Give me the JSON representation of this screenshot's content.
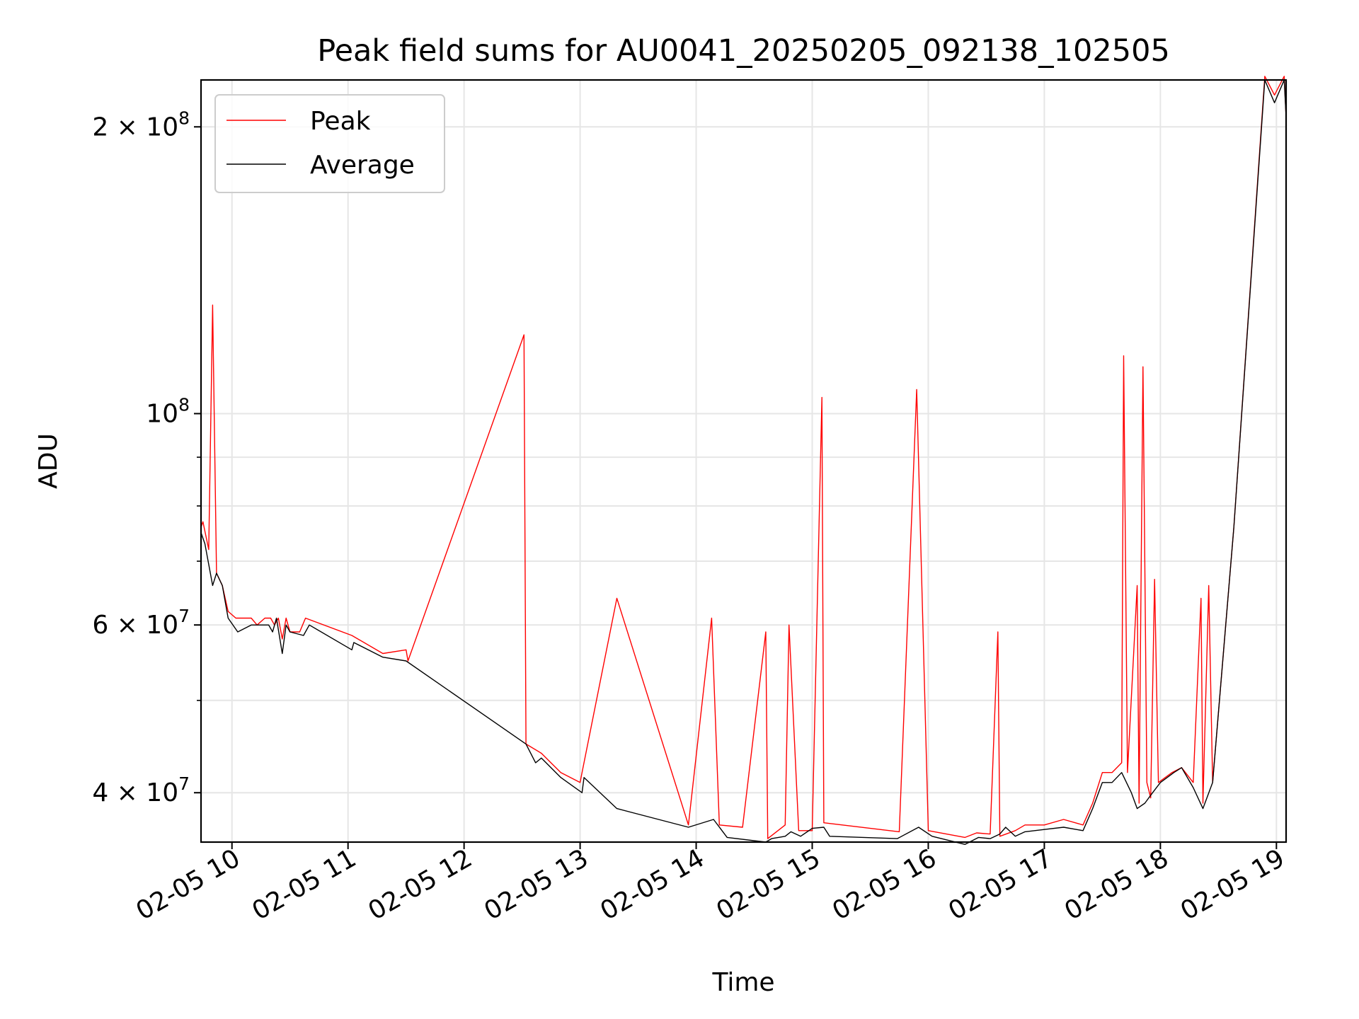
{
  "chart_data": {
    "type": "line",
    "title": "Peak field sums for AU0041_20250205_092138_102505",
    "xlabel": "Time",
    "ylabel": "ADU",
    "yscale": "log",
    "grid": true,
    "legend_position": "top-left",
    "xlim": [
      "2025-02-05T09:44",
      "2025-02-05T19:05"
    ],
    "ylim": [
      35500000,
      224000000
    ],
    "x_ticks": [
      {
        "value": "2025-02-05T10:00",
        "label": "02-05 10"
      },
      {
        "value": "2025-02-05T11:00",
        "label": "02-05 11"
      },
      {
        "value": "2025-02-05T12:00",
        "label": "02-05 12"
      },
      {
        "value": "2025-02-05T13:00",
        "label": "02-05 13"
      },
      {
        "value": "2025-02-05T14:00",
        "label": "02-05 14"
      },
      {
        "value": "2025-02-05T15:00",
        "label": "02-05 15"
      },
      {
        "value": "2025-02-05T16:00",
        "label": "02-05 16"
      },
      {
        "value": "2025-02-05T17:00",
        "label": "02-05 17"
      },
      {
        "value": "2025-02-05T18:00",
        "label": "02-05 18"
      },
      {
        "value": "2025-02-05T19:00",
        "label": "02-05 19"
      }
    ],
    "y_ticks": [
      {
        "value": 200000000,
        "base": "2 × 10",
        "exp": "8"
      },
      {
        "value": 100000000,
        "base": "10",
        "exp": "8"
      },
      {
        "value": 60000000,
        "base": "6 × 10",
        "exp": "7"
      },
      {
        "value": 40000000,
        "base": "4 × 10",
        "exp": "7"
      }
    ],
    "y_minor_ticks": [
      50000000,
      70000000,
      80000000,
      90000000
    ],
    "series": [
      {
        "name": "Peak",
        "color": "#ff0000",
        "points": [
          [
            "2025-02-05T09:44",
            76000000
          ],
          [
            "2025-02-05T09:45",
            77000000
          ],
          [
            "2025-02-05T09:48",
            72000000
          ],
          [
            "2025-02-05T09:50",
            130000000
          ],
          [
            "2025-02-05T09:52",
            68000000
          ],
          [
            "2025-02-05T09:55",
            66000000
          ],
          [
            "2025-02-05T09:58",
            62000000
          ],
          [
            "2025-02-05T10:02",
            61000000
          ],
          [
            "2025-02-05T10:10",
            61000000
          ],
          [
            "2025-02-05T10:13",
            60000000
          ],
          [
            "2025-02-05T10:17",
            61000000
          ],
          [
            "2025-02-05T10:20",
            61000000
          ],
          [
            "2025-02-05T10:22",
            60000000
          ],
          [
            "2025-02-05T10:24",
            61000000
          ],
          [
            "2025-02-05T10:26",
            58000000
          ],
          [
            "2025-02-05T10:28",
            61000000
          ],
          [
            "2025-02-05T10:30",
            59000000
          ],
          [
            "2025-02-05T10:35",
            59000000
          ],
          [
            "2025-02-05T10:38",
            61000000
          ],
          [
            "2025-02-05T11:02",
            58500000
          ],
          [
            "2025-02-05T11:18",
            56000000
          ],
          [
            "2025-02-05T11:30",
            56500000
          ],
          [
            "2025-02-05T11:31",
            55000000
          ],
          [
            "2025-02-05T12:31",
            121000000
          ],
          [
            "2025-02-05T12:32",
            45000000
          ],
          [
            "2025-02-05T12:40",
            44000000
          ],
          [
            "2025-02-05T12:50",
            42000000
          ],
          [
            "2025-02-05T13:00",
            41000000
          ],
          [
            "2025-02-05T13:01",
            42000000
          ],
          [
            "2025-02-05T13:19",
            64000000
          ],
          [
            "2025-02-05T13:56",
            37000000
          ],
          [
            "2025-02-05T14:08",
            61000000
          ],
          [
            "2025-02-05T14:12",
            37000000
          ],
          [
            "2025-02-05T14:24",
            36800000
          ],
          [
            "2025-02-05T14:36",
            59000000
          ],
          [
            "2025-02-05T14:37",
            35800000
          ],
          [
            "2025-02-05T14:46",
            37000000
          ],
          [
            "2025-02-05T14:48",
            60000000
          ],
          [
            "2025-02-05T14:53",
            36500000
          ],
          [
            "2025-02-05T15:00",
            36500000
          ],
          [
            "2025-02-05T15:05",
            104000000
          ],
          [
            "2025-02-05T15:06",
            37200000
          ],
          [
            "2025-02-05T15:45",
            36400000
          ],
          [
            "2025-02-05T15:54",
            106000000
          ],
          [
            "2025-02-05T16:00",
            36500000
          ],
          [
            "2025-02-05T16:19",
            35900000
          ],
          [
            "2025-02-05T16:25",
            36300000
          ],
          [
            "2025-02-05T16:32",
            36200000
          ],
          [
            "2025-02-05T16:36",
            59000000
          ],
          [
            "2025-02-05T16:37",
            36000000
          ],
          [
            "2025-02-05T16:45",
            36500000
          ],
          [
            "2025-02-05T16:50",
            37000000
          ],
          [
            "2025-02-05T17:00",
            37000000
          ],
          [
            "2025-02-05T17:10",
            37500000
          ],
          [
            "2025-02-05T17:20",
            37000000
          ],
          [
            "2025-02-05T17:25",
            39000000
          ],
          [
            "2025-02-05T17:30",
            42000000
          ],
          [
            "2025-02-05T17:35",
            42000000
          ],
          [
            "2025-02-05T17:40",
            43000000
          ],
          [
            "2025-02-05T17:41",
            115000000
          ],
          [
            "2025-02-05T17:43",
            42000000
          ],
          [
            "2025-02-05T17:48",
            66000000
          ],
          [
            "2025-02-05T17:49",
            39000000
          ],
          [
            "2025-02-05T17:51",
            112000000
          ],
          [
            "2025-02-05T17:53",
            41000000
          ],
          [
            "2025-02-05T17:55",
            39500000
          ],
          [
            "2025-02-05T17:57",
            67000000
          ],
          [
            "2025-02-05T17:59",
            41000000
          ],
          [
            "2025-02-05T18:06",
            42000000
          ],
          [
            "2025-02-05T18:11",
            42500000
          ],
          [
            "2025-02-05T18:17",
            41000000
          ],
          [
            "2025-02-05T18:21",
            64000000
          ],
          [
            "2025-02-05T18:22",
            39000000
          ],
          [
            "2025-02-05T18:25",
            66000000
          ],
          [
            "2025-02-05T18:27",
            41000000
          ],
          [
            "2025-02-05T18:38",
            76000000
          ],
          [
            "2025-02-05T18:54",
            226000000
          ],
          [
            "2025-02-05T18:59",
            216000000
          ],
          [
            "2025-02-05T19:04",
            226000000
          ],
          [
            "2025-02-05T19:05",
            205000000
          ]
        ]
      },
      {
        "name": "Average",
        "color": "#000000",
        "points": [
          [
            "2025-02-05T09:44",
            75000000
          ],
          [
            "2025-02-05T09:46",
            73000000
          ],
          [
            "2025-02-05T09:50",
            66000000
          ],
          [
            "2025-02-05T09:52",
            68000000
          ],
          [
            "2025-02-05T09:55",
            66000000
          ],
          [
            "2025-02-05T09:58",
            61000000
          ],
          [
            "2025-02-05T10:03",
            59000000
          ],
          [
            "2025-02-05T10:10",
            60000000
          ],
          [
            "2025-02-05T10:15",
            60000000
          ],
          [
            "2025-02-05T10:19",
            60000000
          ],
          [
            "2025-02-05T10:21",
            59000000
          ],
          [
            "2025-02-05T10:23",
            61000000
          ],
          [
            "2025-02-05T10:26",
            56000000
          ],
          [
            "2025-02-05T10:28",
            60000000
          ],
          [
            "2025-02-05T10:30",
            59000000
          ],
          [
            "2025-02-05T10:37",
            58500000
          ],
          [
            "2025-02-05T10:40",
            60000000
          ],
          [
            "2025-02-05T11:02",
            56500000
          ],
          [
            "2025-02-05T11:03",
            57500000
          ],
          [
            "2025-02-05T11:18",
            55500000
          ],
          [
            "2025-02-05T11:30",
            55000000
          ],
          [
            "2025-02-05T12:32",
            45000000
          ],
          [
            "2025-02-05T12:37",
            43000000
          ],
          [
            "2025-02-05T12:40",
            43500000
          ],
          [
            "2025-02-05T12:50",
            41500000
          ],
          [
            "2025-02-05T13:01",
            40000000
          ],
          [
            "2025-02-05T13:02",
            41500000
          ],
          [
            "2025-02-05T13:19",
            38500000
          ],
          [
            "2025-02-05T13:56",
            36800000
          ],
          [
            "2025-02-05T14:09",
            37500000
          ],
          [
            "2025-02-05T14:16",
            35900000
          ],
          [
            "2025-02-05T14:36",
            35500000
          ],
          [
            "2025-02-05T14:39",
            35800000
          ],
          [
            "2025-02-05T14:46",
            36000000
          ],
          [
            "2025-02-05T14:49",
            36400000
          ],
          [
            "2025-02-05T14:54",
            36000000
          ],
          [
            "2025-02-05T15:00",
            36700000
          ],
          [
            "2025-02-05T15:06",
            36800000
          ],
          [
            "2025-02-05T15:09",
            36000000
          ],
          [
            "2025-02-05T15:44",
            35800000
          ],
          [
            "2025-02-05T15:55",
            36800000
          ],
          [
            "2025-02-05T16:02",
            36000000
          ],
          [
            "2025-02-05T16:19",
            35300000
          ],
          [
            "2025-02-05T16:26",
            35900000
          ],
          [
            "2025-02-05T16:32",
            35800000
          ],
          [
            "2025-02-05T16:37",
            36200000
          ],
          [
            "2025-02-05T16:40",
            36800000
          ],
          [
            "2025-02-05T16:45",
            36000000
          ],
          [
            "2025-02-05T16:50",
            36400000
          ],
          [
            "2025-02-05T17:00",
            36600000
          ],
          [
            "2025-02-05T17:10",
            36800000
          ],
          [
            "2025-02-05T17:20",
            36500000
          ],
          [
            "2025-02-05T17:25",
            38500000
          ],
          [
            "2025-02-05T17:30",
            41000000
          ],
          [
            "2025-02-05T17:35",
            41000000
          ],
          [
            "2025-02-05T17:40",
            42000000
          ],
          [
            "2025-02-05T17:45",
            40000000
          ],
          [
            "2025-02-05T17:48",
            38500000
          ],
          [
            "2025-02-05T17:52",
            39000000
          ],
          [
            "2025-02-05T17:56",
            40000000
          ],
          [
            "2025-02-05T18:00",
            41000000
          ],
          [
            "2025-02-05T18:07",
            42000000
          ],
          [
            "2025-02-05T18:11",
            42500000
          ],
          [
            "2025-02-05T18:17",
            40500000
          ],
          [
            "2025-02-05T18:22",
            38500000
          ],
          [
            "2025-02-05T18:27",
            41000000
          ],
          [
            "2025-02-05T18:38",
            76000000
          ],
          [
            "2025-02-05T18:54",
            224000000
          ],
          [
            "2025-02-05T18:59",
            212000000
          ],
          [
            "2025-02-05T19:04",
            224000000
          ],
          [
            "2025-02-05T19:05",
            205000000
          ]
        ]
      }
    ]
  }
}
